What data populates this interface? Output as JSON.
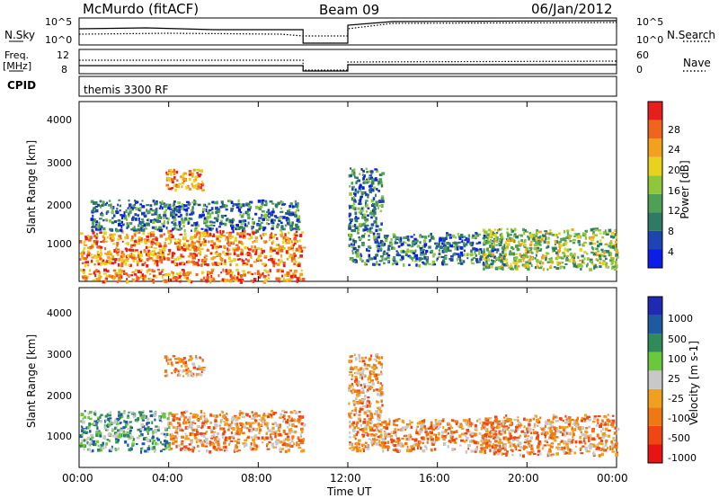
{
  "header": {
    "station": "McMurdo (fitACF)",
    "beam": "Beam 09",
    "date": "06/Jan/2012"
  },
  "top_panels": {
    "nsky_label": "N.Sky",
    "nsky_ticks": [
      "10^5",
      "10^0"
    ],
    "nsearch_label": "N.Search",
    "freq_label_line1": "Freq.",
    "freq_label_line2": "[MHz]",
    "freq_ticks": [
      "12",
      "8"
    ],
    "nave_label": "Nave",
    "nave_ticks": [
      "60",
      "0"
    ],
    "cpid_label": "CPID",
    "cpid_text": "themis 3300 RF",
    "right_nsky_ticks": [
      "10^5",
      "10^0"
    ]
  },
  "colors": {
    "power_scale": [
      "#0a1ee8",
      "#1e44b4",
      "#2f7a64",
      "#4ea055",
      "#8ec83a",
      "#e8d21e",
      "#f2a01e",
      "#f0641e",
      "#e81e1e"
    ],
    "velocity_scale": [
      "#1e2ab4",
      "#1e5aa0",
      "#2f8c5a",
      "#6ac83c",
      "#c8c8c8",
      "#f0a01e",
      "#f07814",
      "#f04614",
      "#e81414"
    ]
  },
  "chart_data": [
    {
      "type": "heatmap",
      "title": "Power",
      "ylabel": "Slant Range [km]",
      "xlabel": "",
      "ylim": [
        180,
        4600
      ],
      "xlim_hours": [
        0,
        24
      ],
      "y_ticks": [
        "4000",
        "3000",
        "2000",
        "1000"
      ],
      "x_ticks": [],
      "colorbar": {
        "label": "Power [dB]",
        "ticks": [
          "28",
          "24",
          "20",
          "16",
          "12",
          "8",
          "4"
        ],
        "range": [
          0,
          32
        ]
      },
      "echo_regions": [
        {
          "t0": 0.0,
          "t1": 10.0,
          "r0": 200,
          "r1": 500,
          "level": "high"
        },
        {
          "t0": 0.0,
          "t1": 10.0,
          "r0": 600,
          "r1": 1450,
          "level": "high"
        },
        {
          "t0": 3.8,
          "t1": 5.5,
          "r0": 2450,
          "r1": 2950,
          "level": "high"
        },
        {
          "t0": 0.5,
          "t1": 9.8,
          "r0": 1450,
          "r1": 2200,
          "level": "low"
        },
        {
          "t0": 12.0,
          "t1": 13.5,
          "r0": 600,
          "r1": 3000,
          "level": "low"
        },
        {
          "t0": 13.5,
          "t1": 19.0,
          "r0": 600,
          "r1": 1400,
          "level": "low"
        },
        {
          "t0": 18.0,
          "t1": 24.0,
          "r0": 500,
          "r1": 1500,
          "level": "medium"
        }
      ]
    },
    {
      "type": "heatmap",
      "title": "Velocity",
      "ylabel": "Slant Range [km]",
      "xlabel": "Time UT",
      "ylim": [
        180,
        4600
      ],
      "xlim_hours": [
        0,
        24
      ],
      "y_ticks": [
        "4000",
        "3000",
        "2000",
        "1000"
      ],
      "x_ticks": [
        "00:00",
        "04:00",
        "08:00",
        "12:00",
        "16:00",
        "20:00",
        "00:00"
      ],
      "colorbar": {
        "label": "Velocity [m s-1]",
        "ticks": [
          "1000",
          "500",
          "100",
          "25",
          "-25",
          "-100",
          "-500",
          "-1000"
        ]
      },
      "echo_regions": [
        {
          "t0": 0.0,
          "t1": 4.0,
          "r0": 600,
          "r1": 1600,
          "level": "positive"
        },
        {
          "t0": 4.0,
          "t1": 10.0,
          "r0": 600,
          "r1": 1600,
          "level": "negative"
        },
        {
          "t0": 3.8,
          "t1": 5.5,
          "r0": 2450,
          "r1": 2950,
          "level": "negative"
        },
        {
          "t0": 12.0,
          "t1": 13.5,
          "r0": 600,
          "r1": 3000,
          "level": "negative"
        },
        {
          "t0": 13.5,
          "t1": 19.0,
          "r0": 600,
          "r1": 1400,
          "level": "negative"
        },
        {
          "t0": 18.0,
          "t1": 24.0,
          "r0": 500,
          "r1": 1500,
          "level": "negative"
        }
      ]
    }
  ]
}
